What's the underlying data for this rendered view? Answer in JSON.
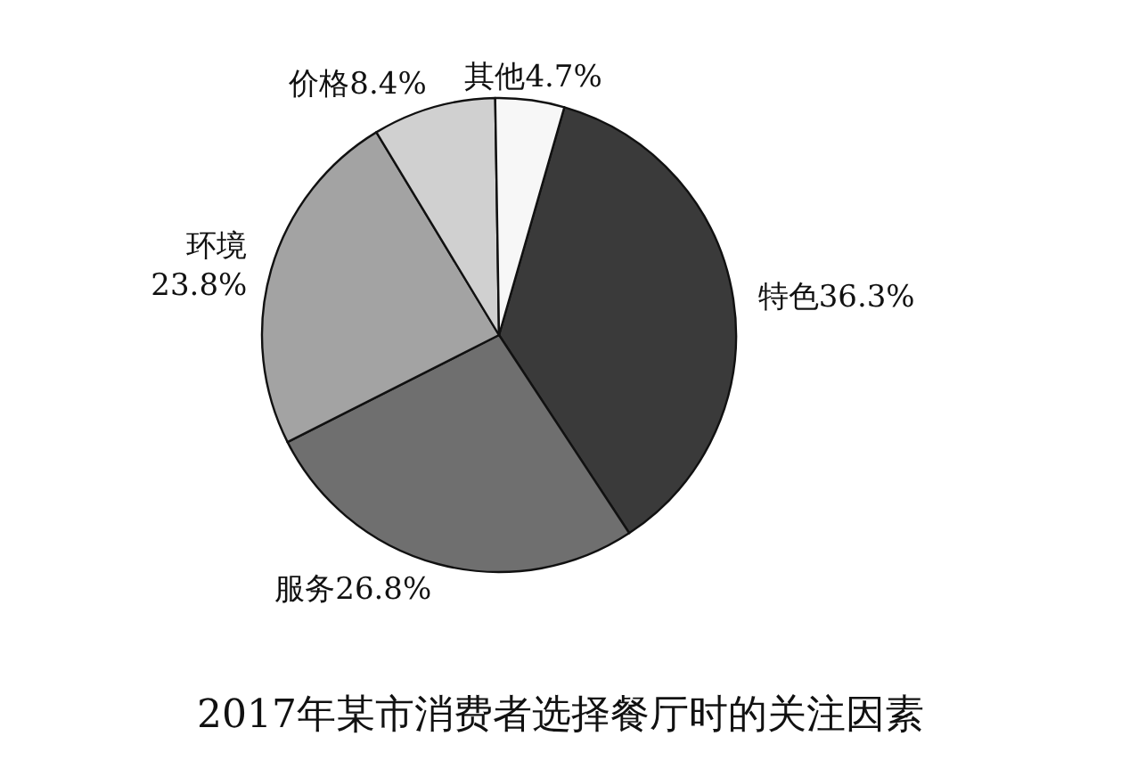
{
  "chart_data": {
    "type": "pie",
    "title": "2017年某市消费者选择餐厅时的关注因素",
    "categories": [
      "特色",
      "服务",
      "环境",
      "价格",
      "其他"
    ],
    "values": [
      36.3,
      26.8,
      23.8,
      8.4,
      4.7
    ],
    "value_labels": [
      "36.3%",
      "26.8%",
      "23.8%",
      "8.4%",
      "4.7%"
    ],
    "colors": [
      "#3a3a3a",
      "#6f6f6f",
      "#a3a3a3",
      "#d0d0d0",
      "#f7f7f7"
    ]
  }
}
